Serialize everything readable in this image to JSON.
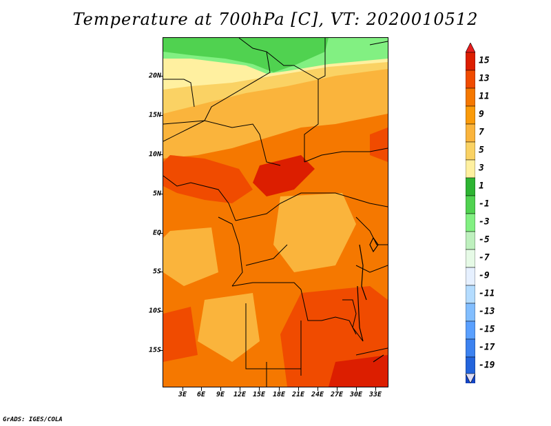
{
  "title": "Temperature at 700hPa [C], VT: 2020010512",
  "credit": "GrADS: IGES/COLA",
  "y_axis_labels": [
    "20N",
    "15N",
    "10N",
    "5N",
    "EQ",
    "5S",
    "10S",
    "15S"
  ],
  "x_axis_labels": [
    "3E",
    "6E",
    "9E",
    "12E",
    "15E",
    "18E",
    "21E",
    "24E",
    "27E",
    "30E",
    "33E"
  ],
  "colorbar": {
    "labels": [
      "15",
      "13",
      "11",
      "9",
      "7",
      "5",
      "3",
      "1",
      "-1",
      "-3",
      "-5",
      "-7",
      "-9",
      "-11",
      "-13",
      "-15",
      "-17",
      "-19"
    ],
    "colors": [
      "#a50000",
      "#dc1e00",
      "#f04b00",
      "#f57800",
      "#fa9b0a",
      "#fab43c",
      "#fad264",
      "#fff0a0",
      "#2db432",
      "#50d250",
      "#82f082",
      "#bef0be",
      "#e6fae6",
      "#e6f0ff",
      "#b4dcff",
      "#82beff",
      "#5aa0ff",
      "#3c82f0",
      "#2364dc",
      "#1446c8",
      "#0a28a0",
      "#000064",
      "#dcdcf0"
    ],
    "top_arrow_color": "#e61e1e",
    "bottom_arrow_color": "#dcdcf5"
  },
  "field_colors": {
    "green_dark": "#50d250",
    "green_light": "#82f082",
    "yellow_pale": "#fff0a0",
    "yellow": "#fad264",
    "orange_light": "#fab43c",
    "orange": "#f57800",
    "orange_red": "#f04b00",
    "red": "#dc1e00",
    "coast_lines": "#000000"
  }
}
